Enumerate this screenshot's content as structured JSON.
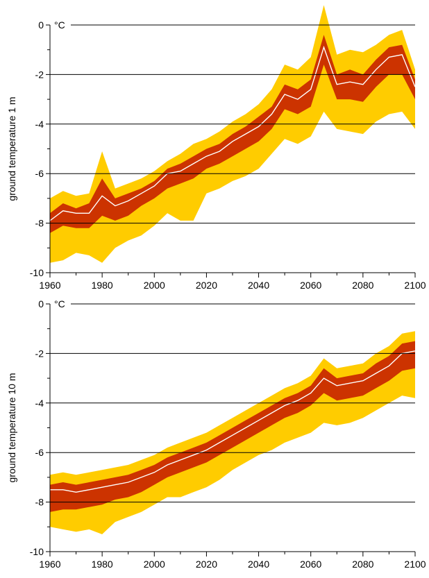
{
  "chart_data": [
    {
      "type": "area",
      "ylabel": "ground temperature 1 m",
      "unit": "°C",
      "xlim": [
        1960,
        2100
      ],
      "ylim": [
        -10,
        0
      ],
      "x_ticks": [
        "1960",
        "1980",
        "2000",
        "2020",
        "2040",
        "2060",
        "2080",
        "2100"
      ],
      "y_ticks": [
        "0",
        "-2",
        "-4",
        "-6",
        "-8",
        "-10"
      ],
      "gridlines_y": [
        -2,
        -4,
        -6,
        -8
      ],
      "colors": {
        "outer_band": "#ffcc00",
        "inner_band": "#cc3300",
        "median": "#ffffff"
      },
      "x": [
        1960,
        1965,
        1970,
        1975,
        1980,
        1985,
        1990,
        1995,
        2000,
        2005,
        2010,
        2015,
        2020,
        2025,
        2030,
        2035,
        2040,
        2045,
        2050,
        2055,
        2060,
        2065,
        2070,
        2075,
        2080,
        2085,
        2090,
        2095,
        2100
      ],
      "series": [
        {
          "role": "outer_upper",
          "values": [
            -7.0,
            -6.7,
            -6.9,
            -6.8,
            -5.1,
            -6.6,
            -6.4,
            -6.2,
            -5.9,
            -5.5,
            -5.2,
            -4.8,
            -4.6,
            -4.3,
            -3.9,
            -3.6,
            -3.2,
            -2.6,
            -1.6,
            -1.8,
            -1.3,
            0.8,
            -1.2,
            -1.0,
            -1.1,
            -0.8,
            -0.4,
            -0.2,
            -1.8
          ]
        },
        {
          "role": "inner_upper",
          "values": [
            -7.6,
            -7.2,
            -7.4,
            -7.2,
            -6.2,
            -7.0,
            -6.8,
            -6.6,
            -6.3,
            -5.8,
            -5.6,
            -5.3,
            -5.0,
            -4.8,
            -4.4,
            -4.1,
            -3.7,
            -3.3,
            -2.4,
            -2.6,
            -2.2,
            -0.4,
            -2.0,
            -1.8,
            -2.0,
            -1.4,
            -0.9,
            -0.8,
            -2.2
          ]
        },
        {
          "role": "median",
          "values": [
            -7.9,
            -7.5,
            -7.6,
            -7.6,
            -6.9,
            -7.3,
            -7.1,
            -6.8,
            -6.5,
            -6.0,
            -5.9,
            -5.6,
            -5.3,
            -5.1,
            -4.7,
            -4.4,
            -4.1,
            -3.6,
            -2.8,
            -3.0,
            -2.6,
            -0.9,
            -2.4,
            -2.3,
            -2.4,
            -1.8,
            -1.3,
            -1.2,
            -2.5
          ]
        },
        {
          "role": "inner_lower",
          "values": [
            -8.4,
            -8.1,
            -8.2,
            -8.2,
            -7.7,
            -7.9,
            -7.7,
            -7.3,
            -7.0,
            -6.6,
            -6.4,
            -6.2,
            -5.8,
            -5.6,
            -5.3,
            -5.0,
            -4.7,
            -4.2,
            -3.4,
            -3.6,
            -3.3,
            -1.6,
            -3.0,
            -3.0,
            -3.1,
            -2.5,
            -2.0,
            -2.0,
            -3.0
          ]
        },
        {
          "role": "outer_lower",
          "values": [
            -9.6,
            -9.5,
            -9.2,
            -9.3,
            -9.6,
            -9.0,
            -8.7,
            -8.5,
            -8.1,
            -7.6,
            -7.9,
            -7.9,
            -6.8,
            -6.6,
            -6.3,
            -6.1,
            -5.8,
            -5.2,
            -4.6,
            -4.8,
            -4.5,
            -3.5,
            -4.2,
            -4.3,
            -4.4,
            -3.9,
            -3.6,
            -3.5,
            -4.2
          ]
        }
      ]
    },
    {
      "type": "area",
      "ylabel": "ground temperature 10 m",
      "unit": "°C",
      "xlim": [
        1960,
        2100
      ],
      "ylim": [
        -10,
        0
      ],
      "x_ticks": [
        "1960",
        "1980",
        "2000",
        "2020",
        "2040",
        "2060",
        "2080",
        "2100"
      ],
      "y_ticks": [
        "0",
        "-2",
        "-4",
        "-6",
        "-8",
        "-10"
      ],
      "gridlines_y": [
        -2,
        -4,
        -6,
        -8
      ],
      "colors": {
        "outer_band": "#ffcc00",
        "inner_band": "#cc3300",
        "median": "#ffffff"
      },
      "x": [
        1960,
        1965,
        1970,
        1975,
        1980,
        1985,
        1990,
        1995,
        2000,
        2005,
        2010,
        2015,
        2020,
        2025,
        2030,
        2035,
        2040,
        2045,
        2050,
        2055,
        2060,
        2065,
        2070,
        2075,
        2080,
        2085,
        2090,
        2095,
        2100
      ],
      "series": [
        {
          "role": "outer_upper",
          "values": [
            -6.9,
            -6.8,
            -6.9,
            -6.8,
            -6.7,
            -6.6,
            -6.5,
            -6.3,
            -6.1,
            -5.8,
            -5.6,
            -5.4,
            -5.2,
            -4.9,
            -4.6,
            -4.3,
            -4.0,
            -3.7,
            -3.4,
            -3.2,
            -2.9,
            -2.2,
            -2.6,
            -2.5,
            -2.4,
            -2.0,
            -1.7,
            -1.2,
            -1.1
          ]
        },
        {
          "role": "inner_upper",
          "values": [
            -7.3,
            -7.2,
            -7.3,
            -7.2,
            -7.1,
            -7.0,
            -6.9,
            -6.7,
            -6.5,
            -6.2,
            -6.0,
            -5.8,
            -5.6,
            -5.3,
            -5.0,
            -4.7,
            -4.4,
            -4.1,
            -3.8,
            -3.6,
            -3.3,
            -2.6,
            -3.0,
            -2.9,
            -2.8,
            -2.4,
            -2.1,
            -1.6,
            -1.5
          ]
        },
        {
          "role": "median",
          "values": [
            -7.5,
            -7.5,
            -7.6,
            -7.5,
            -7.4,
            -7.3,
            -7.2,
            -7.0,
            -6.8,
            -6.5,
            -6.3,
            -6.1,
            -5.9,
            -5.6,
            -5.3,
            -5.0,
            -4.7,
            -4.4,
            -4.1,
            -3.9,
            -3.6,
            -3.0,
            -3.3,
            -3.2,
            -3.1,
            -2.8,
            -2.5,
            -2.0,
            -1.9
          ]
        },
        {
          "role": "inner_lower",
          "values": [
            -8.4,
            -8.3,
            -8.3,
            -8.2,
            -8.1,
            -7.9,
            -7.8,
            -7.6,
            -7.3,
            -7.0,
            -6.8,
            -6.6,
            -6.4,
            -6.1,
            -5.8,
            -5.5,
            -5.2,
            -4.9,
            -4.6,
            -4.4,
            -4.1,
            -3.6,
            -3.9,
            -3.8,
            -3.7,
            -3.4,
            -3.1,
            -2.7,
            -2.6
          ]
        },
        {
          "role": "outer_lower",
          "values": [
            -9.0,
            -9.1,
            -9.2,
            -9.1,
            -9.3,
            -8.8,
            -8.6,
            -8.4,
            -8.1,
            -7.8,
            -7.8,
            -7.6,
            -7.4,
            -7.1,
            -6.7,
            -6.4,
            -6.1,
            -5.9,
            -5.6,
            -5.4,
            -5.2,
            -4.8,
            -4.9,
            -4.8,
            -4.6,
            -4.3,
            -4.0,
            -3.7,
            -3.8
          ]
        }
      ]
    }
  ]
}
